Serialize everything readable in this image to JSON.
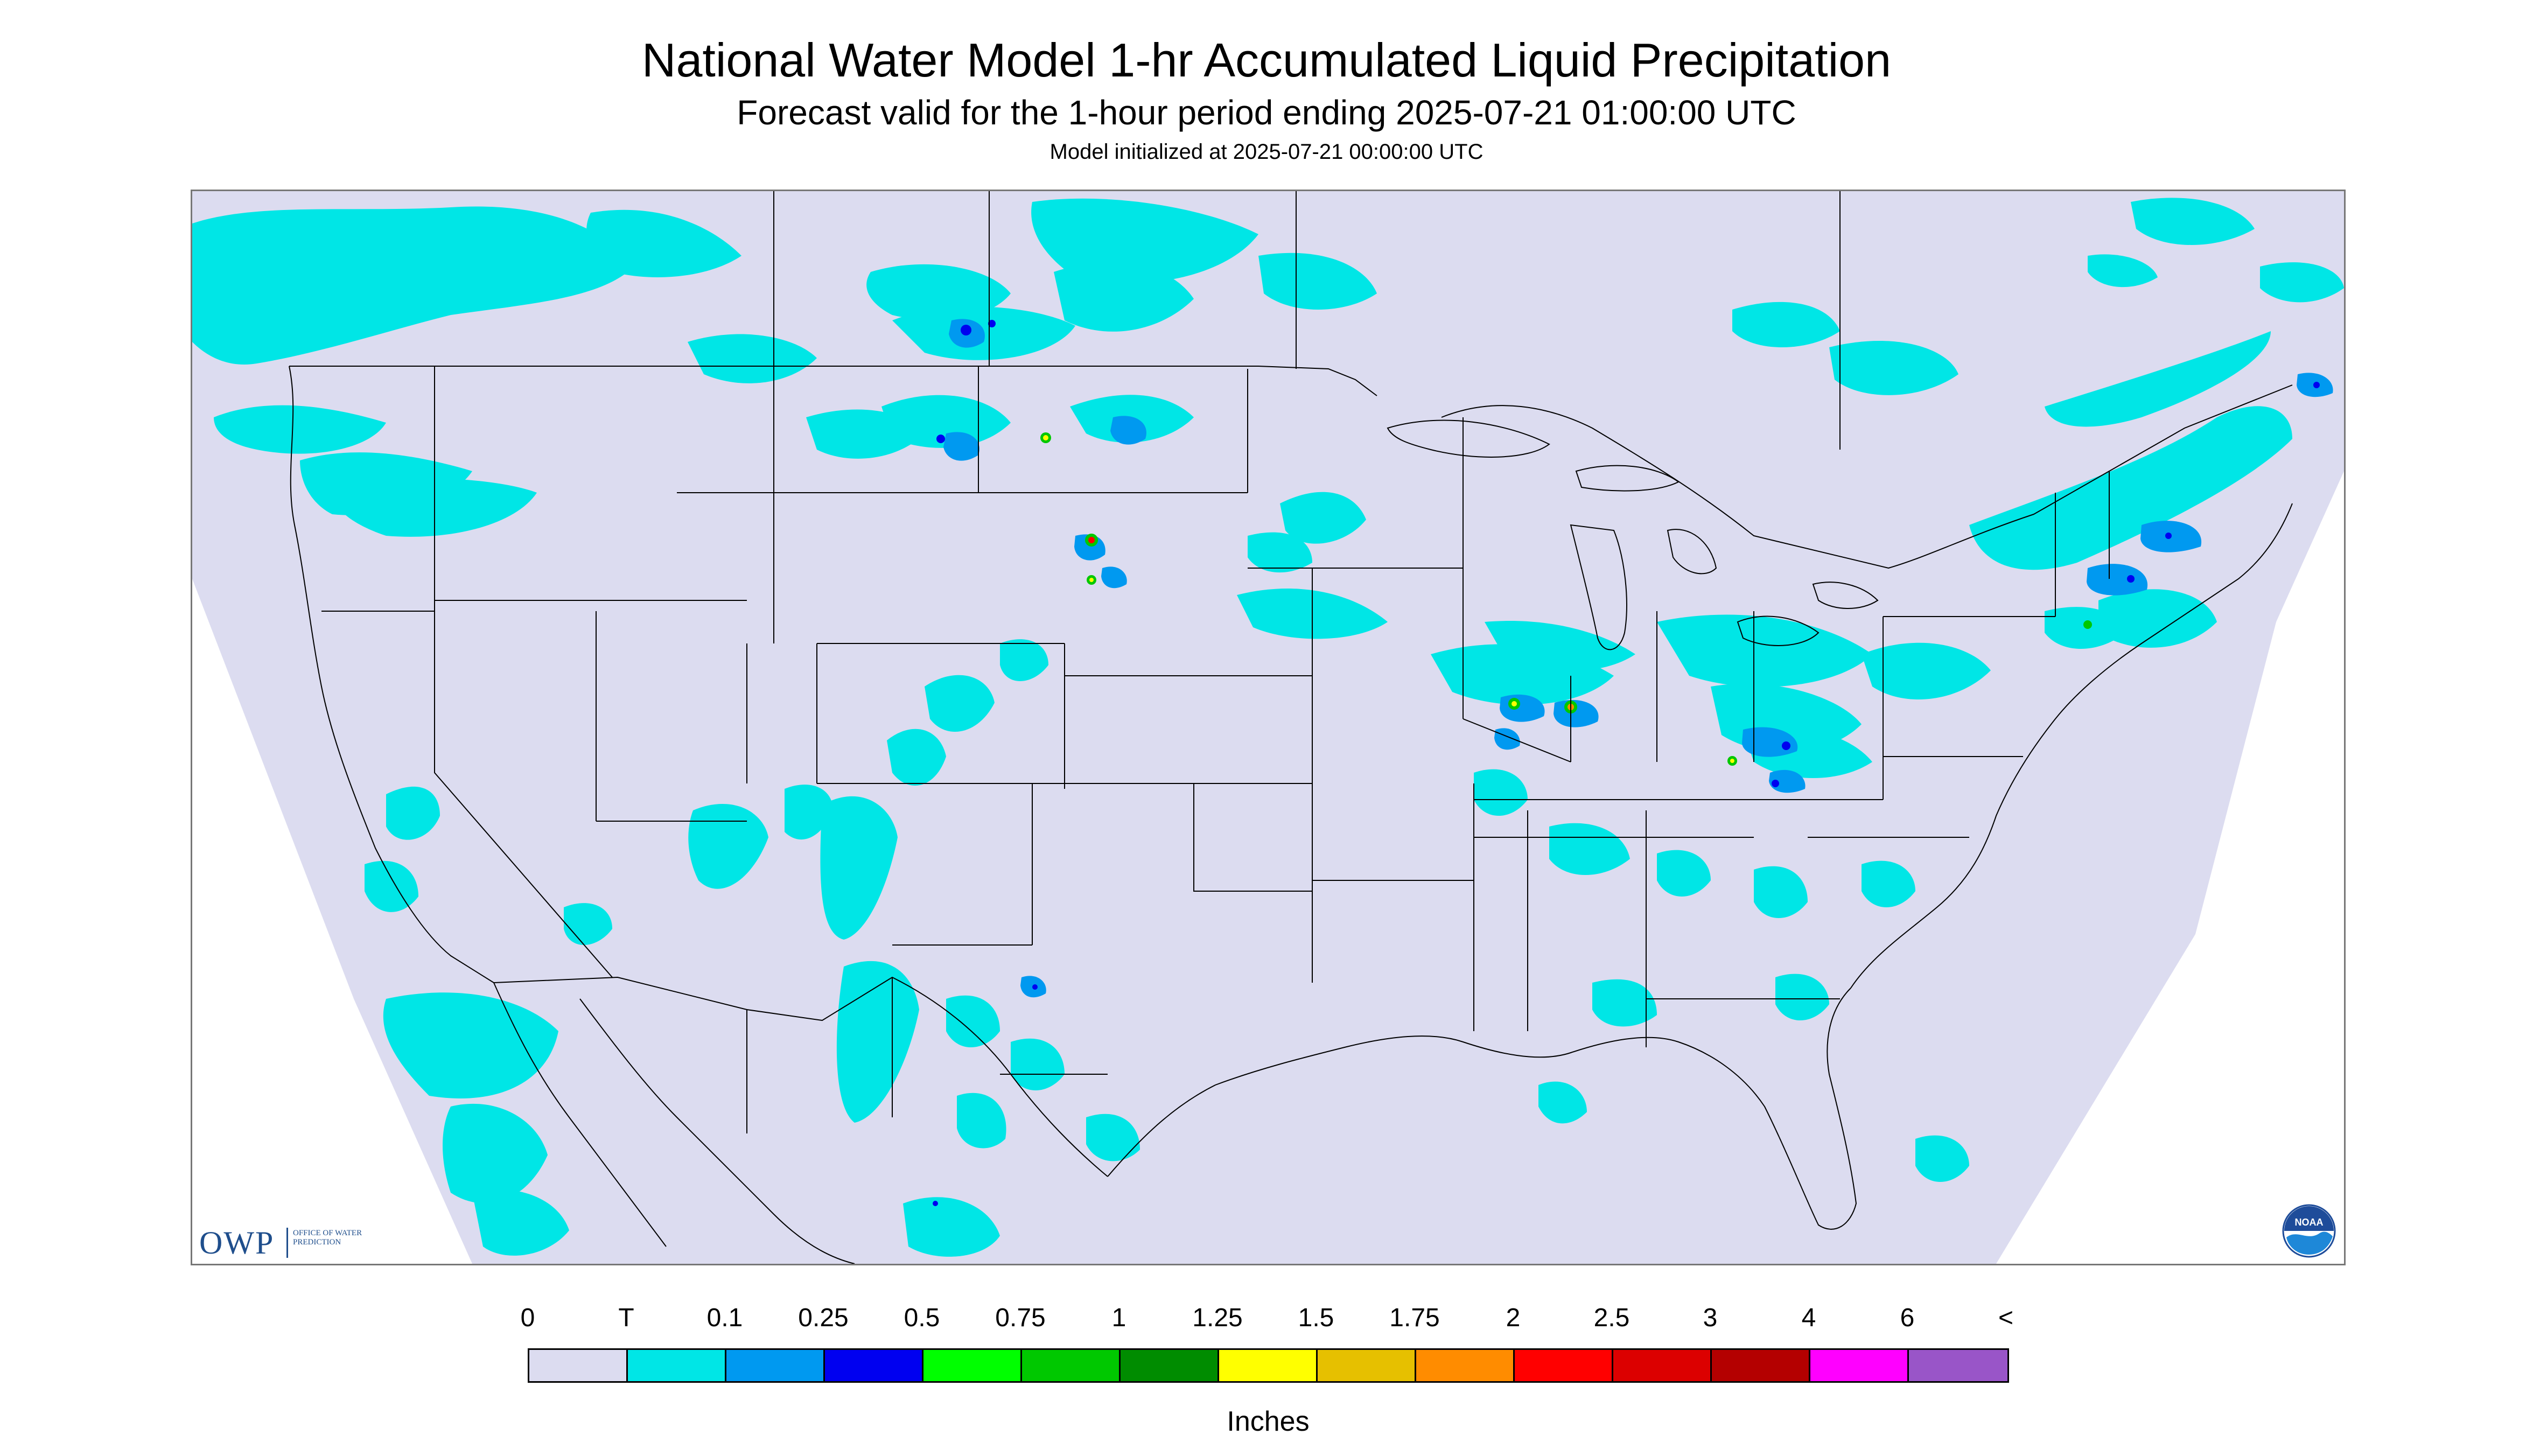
{
  "header": {
    "title": "National Water Model 1-hr Accumulated Liquid Precipitation",
    "subtitle": "Forecast valid for the 1-hour period ending 2025-07-21 01:00:00 UTC",
    "init_line": "Model initialized at 2025-07-21 00:00:00 UTC"
  },
  "map": {
    "background_color": "#dcdcf0",
    "outside_domain_color": "#ffffff",
    "boundary_color": "#000000",
    "description_icons": [
      "owp-logo",
      "noaa-logo"
    ]
  },
  "logos": {
    "owp_letters": "OWP",
    "owp_name": "Office of Water Prediction",
    "noaa_text": "NOAA"
  },
  "legend": {
    "units": "Inches",
    "labels": [
      "0",
      "T",
      "0.1",
      "0.25",
      "0.5",
      "0.75",
      "1",
      "1.25",
      "1.5",
      "1.75",
      "2",
      "2.5",
      "3",
      "4",
      "6",
      "<"
    ],
    "colors": [
      "#dcdcf0",
      "#00e6e6",
      "#0099f0",
      "#0000f0",
      "#00ff00",
      "#00c800",
      "#008c00",
      "#ffff00",
      "#e6c000",
      "#ff8c00",
      "#ff0000",
      "#dc0000",
      "#b40000",
      "#ff00ff",
      "#9955c8"
    ]
  }
}
